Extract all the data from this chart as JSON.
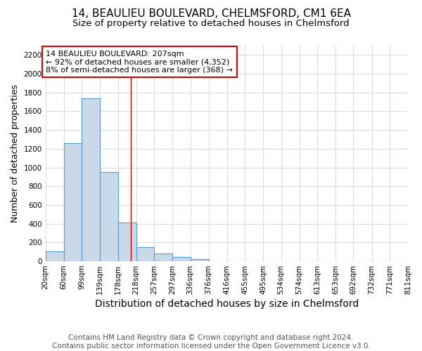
{
  "title": "14, BEAULIEU BOULEVARD, CHELMSFORD, CM1 6EA",
  "subtitle": "Size of property relative to detached houses in Chelmsford",
  "xlabel": "Distribution of detached houses by size in Chelmsford",
  "ylabel": "Number of detached properties",
  "footer_line1": "Contains HM Land Registry data © Crown copyright and database right 2024.",
  "footer_line2": "Contains public sector information licensed under the Open Government Licence v3.0.",
  "bin_edges": [
    20,
    60,
    99,
    139,
    178,
    218,
    257,
    297,
    336,
    376,
    416,
    455,
    495,
    534,
    574,
    613,
    653,
    692,
    732,
    771,
    811
  ],
  "bar_heights": [
    103,
    1262,
    1740,
    950,
    415,
    150,
    80,
    42,
    25,
    0,
    0,
    0,
    0,
    0,
    0,
    0,
    0,
    0,
    0,
    0
  ],
  "bar_color": "#c9d9e8",
  "bar_edge_color": "#5b9bd5",
  "property_line_x": 207,
  "property_line_color": "#cc0000",
  "annotation_line1": "14 BEAULIEU BOULEVARD: 207sqm",
  "annotation_line2": "← 92% of detached houses are smaller (4,352)",
  "annotation_line3": "8% of semi-detached houses are larger (368) →",
  "annotation_box_color": "#cc0000",
  "ylim": [
    0,
    2300
  ],
  "yticks": [
    0,
    200,
    400,
    600,
    800,
    1000,
    1200,
    1400,
    1600,
    1800,
    2000,
    2200
  ],
  "grid_color": "#ccd6e8",
  "title_fontsize": 11,
  "subtitle_fontsize": 9.5,
  "xlabel_fontsize": 10,
  "ylabel_fontsize": 9,
  "tick_fontsize": 7.5,
  "footer_fontsize": 7.5,
  "annotation_fontsize": 8
}
